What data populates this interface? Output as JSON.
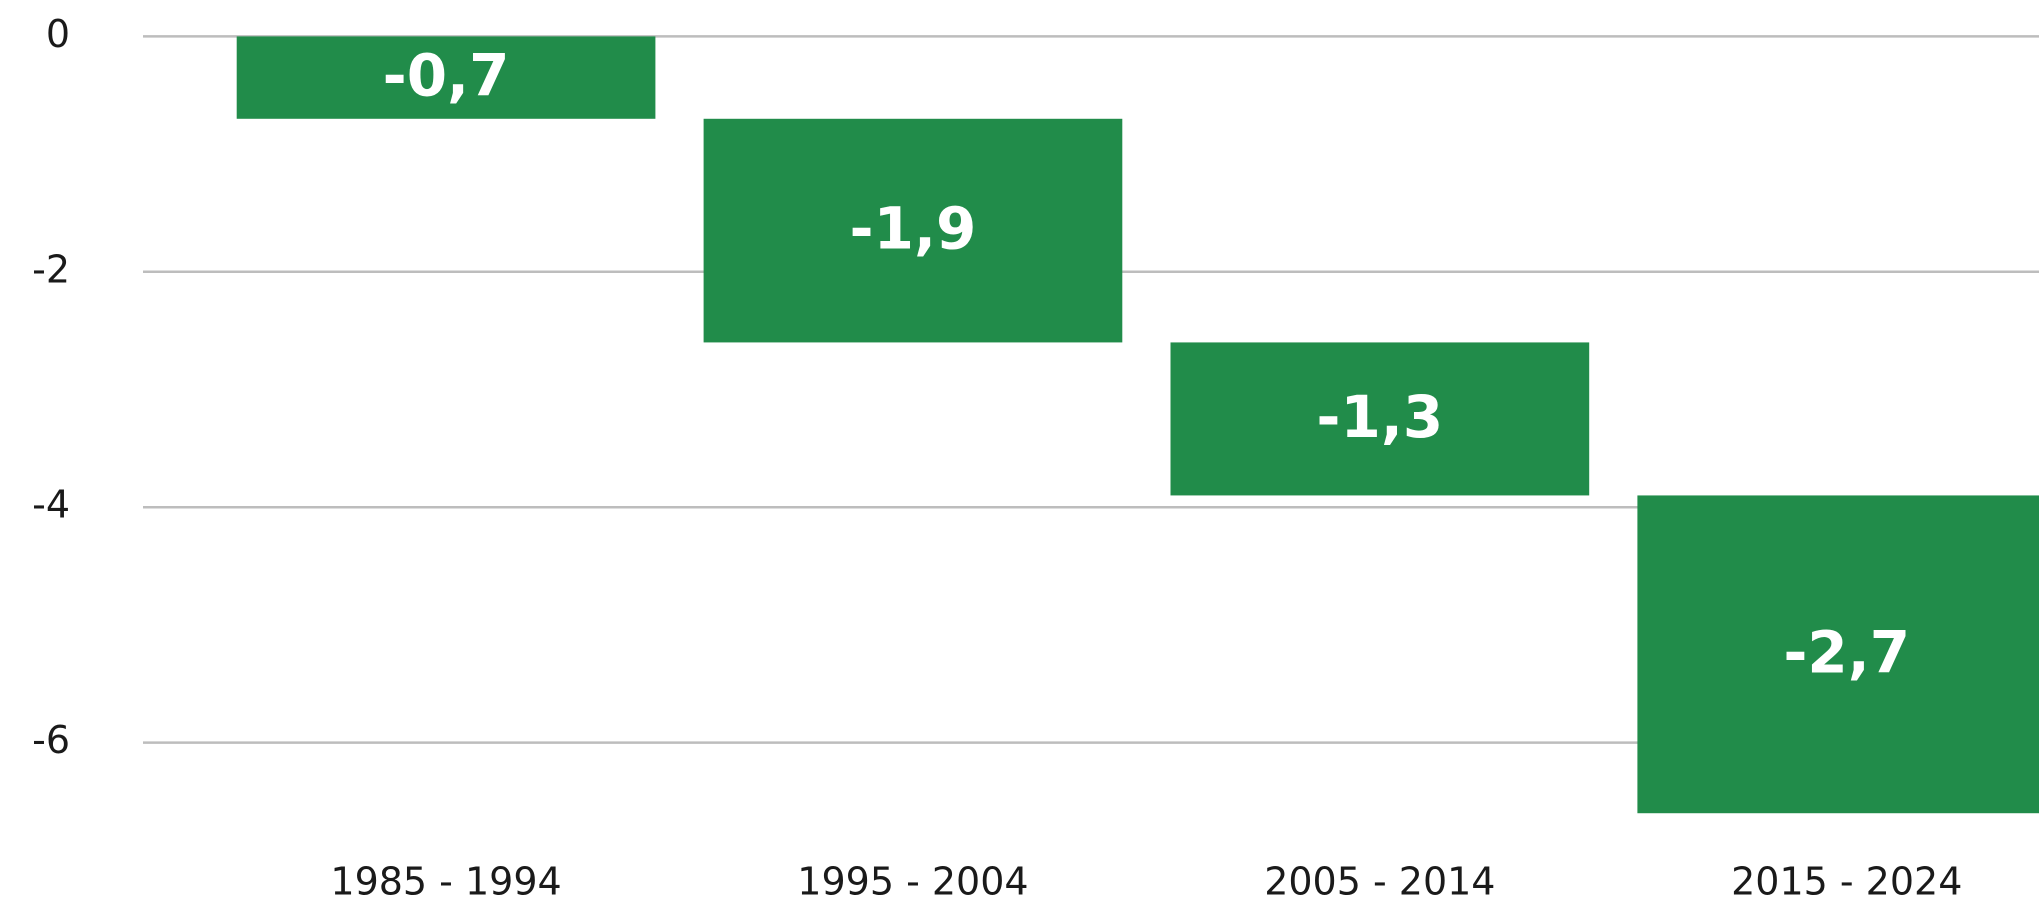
{
  "chart_data": {
    "type": "waterfall",
    "categories": [
      "1985 - 1994",
      "1995 - 2004",
      "2005 - 2014",
      "2015 - 2024"
    ],
    "values": [
      -0.7,
      -1.9,
      -1.3,
      -2.7
    ],
    "value_labels": [
      "-0,7",
      "-1,9",
      "-1,3",
      "-2,7"
    ],
    "color": "#218c4a",
    "ylim": [
      -7,
      0
    ],
    "yticks": [
      0,
      -2,
      -4,
      -6
    ],
    "grid": true
  }
}
